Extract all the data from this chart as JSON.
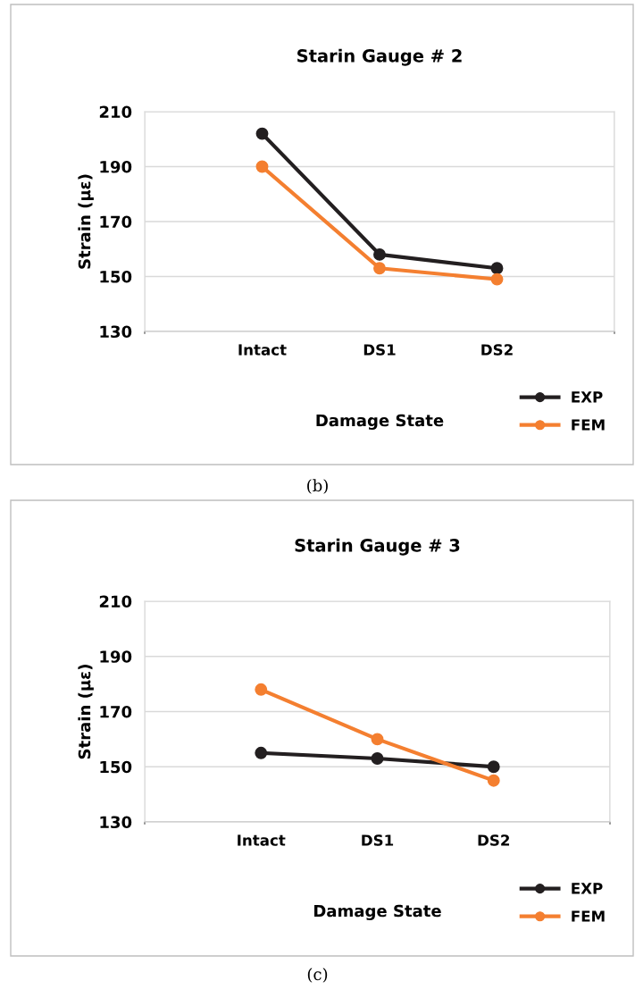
{
  "chart_data": [
    {
      "type": "line",
      "title": "Starin Gauge # 2",
      "xlabel": "Damage State",
      "ylabel": "Strain (με)",
      "categories": [
        "Intact",
        "DS1",
        "DS2"
      ],
      "series": [
        {
          "name": "EXP",
          "color": "#231f20",
          "values": [
            202,
            158,
            153
          ]
        },
        {
          "name": "FEM",
          "color": "#f47f30",
          "values": [
            190,
            153,
            149
          ]
        }
      ],
      "ylim": [
        130,
        210
      ],
      "yticks": [
        130,
        150,
        170,
        190,
        210
      ],
      "grid": true,
      "legend": "bottom right",
      "marker": "circle",
      "line_style": "solid",
      "annotations": [
        "(b)"
      ]
    },
    {
      "type": "line",
      "title": "Starin Gauge # 3",
      "xlabel": "Damage State",
      "ylabel": "Strain (με)",
      "categories": [
        "Intact",
        "DS1",
        "DS2"
      ],
      "series": [
        {
          "name": "EXP",
          "color": "#231f20",
          "values": [
            155,
            153,
            150
          ]
        },
        {
          "name": "FEM",
          "color": "#f47f30",
          "values": [
            178,
            160,
            145
          ]
        }
      ],
      "ylim": [
        130,
        210
      ],
      "yticks": [
        130,
        150,
        170,
        190,
        210
      ],
      "grid": true,
      "legend": "bottom right",
      "marker": "circle",
      "line_style": "solid",
      "annotations": [
        "(c)"
      ]
    }
  ]
}
